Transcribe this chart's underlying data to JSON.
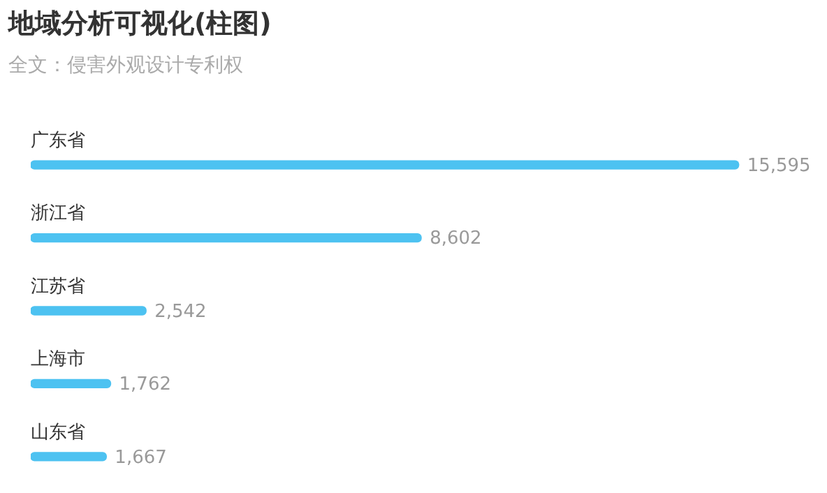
{
  "chart_data": {
    "type": "bar",
    "orientation": "horizontal",
    "title": "地域分析可视化(柱图)",
    "subtitle": "全文：侵害外观设计专利权",
    "categories": [
      "广东省",
      "浙江省",
      "江苏省",
      "上海市",
      "山东省"
    ],
    "values": [
      15595,
      8602,
      2542,
      1762,
      1667
    ],
    "value_labels": [
      "15,595",
      "8,602",
      "2,542",
      "1,762",
      "1,667"
    ],
    "color": "#4dc2f1"
  }
}
